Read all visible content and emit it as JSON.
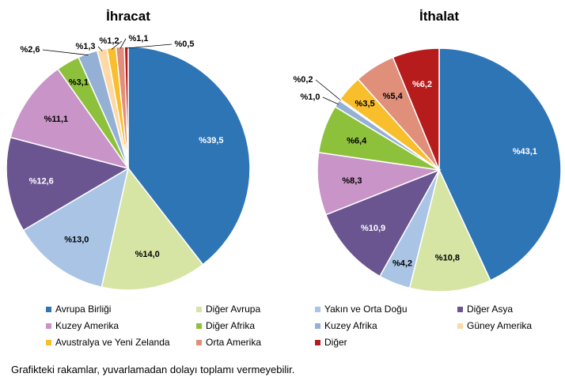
{
  "chart_data": [
    {
      "type": "pie",
      "title": "İhracat",
      "slices": [
        {
          "label": "Avrupa Birliği",
          "value": 39.5,
          "text": "%39,5"
        },
        {
          "label": "Diğer Avrupa",
          "value": 14.0,
          "text": "%14,0"
        },
        {
          "label": "Yakın ve Orta Doğu",
          "value": 13.0,
          "text": "%13,0"
        },
        {
          "label": "Diğer Asya",
          "value": 12.6,
          "text": "%12,6"
        },
        {
          "label": "Kuzey Amerika",
          "value": 11.1,
          "text": "%11,1"
        },
        {
          "label": "Diğer Afrika",
          "value": 3.1,
          "text": "%3,1"
        },
        {
          "label": "Kuzey Afrika",
          "value": 2.6,
          "text": "%2,6"
        },
        {
          "label": "Güney Amerika",
          "value": 1.3,
          "text": "%1,3"
        },
        {
          "label": "Avustralya ve Yeni Zelanda",
          "value": 1.2,
          "text": "%1,2"
        },
        {
          "label": "Orta Amerika",
          "value": 1.1,
          "text": "%1,1"
        },
        {
          "label": "Diğer",
          "value": 0.5,
          "text": "%0,5"
        }
      ]
    },
    {
      "type": "pie",
      "title": "İthalat",
      "slices": [
        {
          "label": "Avrupa Birliği",
          "value": 43.1,
          "text": "%43,1"
        },
        {
          "label": "Diğer Avrupa",
          "value": 10.8,
          "text": "%10,8"
        },
        {
          "label": "Yakın ve Orta Doğu",
          "value": 4.2,
          "text": "%4,2"
        },
        {
          "label": "Diğer Asya",
          "value": 10.9,
          "text": "%10,9"
        },
        {
          "label": "Kuzey Amerika",
          "value": 8.3,
          "text": "%8,3"
        },
        {
          "label": "Diğer Afrika",
          "value": 6.4,
          "text": "%6,4"
        },
        {
          "label": "Kuzey Afrika",
          "value": 1.0,
          "text": "%1,0"
        },
        {
          "label": "Güney Amerika",
          "value": 0.2,
          "text": "%0,2"
        },
        {
          "label": "Avustralya ve Yeni Zelanda",
          "value": 3.5,
          "text": "%3,5"
        },
        {
          "label": "Orta Amerika",
          "value": 5.4,
          "text": "%5,4"
        },
        {
          "label": "Diğer",
          "value": 6.2,
          "text": "%6,2"
        }
      ]
    }
  ],
  "legend": [
    {
      "label": "Avrupa Birliği",
      "color": "#2e75b6"
    },
    {
      "label": "Diğer Avrupa",
      "color": "#d6e4a4"
    },
    {
      "label": "Yakın ve Orta Doğu",
      "color": "#a9c4e4"
    },
    {
      "label": "Diğer Asya",
      "color": "#6a5590"
    },
    {
      "label": "Kuzey Amerika",
      "color": "#c994c7"
    },
    {
      "label": "Diğer Afrika",
      "color": "#8dc13c"
    },
    {
      "label": "Kuzey Afrika",
      "color": "#95b0d5"
    },
    {
      "label": "Güney Amerika",
      "color": "#fcd9a6"
    },
    {
      "label": "Avustralya ve Yeni Zelanda",
      "color": "#f8be2c"
    },
    {
      "label": "Orta Amerika",
      "color": "#e08f7a"
    },
    {
      "label": "Diğer",
      "color": "#b71c1c"
    }
  ],
  "footnote": "Grafikteki rakamlar, yuvarlamadan dolayı toplamı vermeyebilir."
}
